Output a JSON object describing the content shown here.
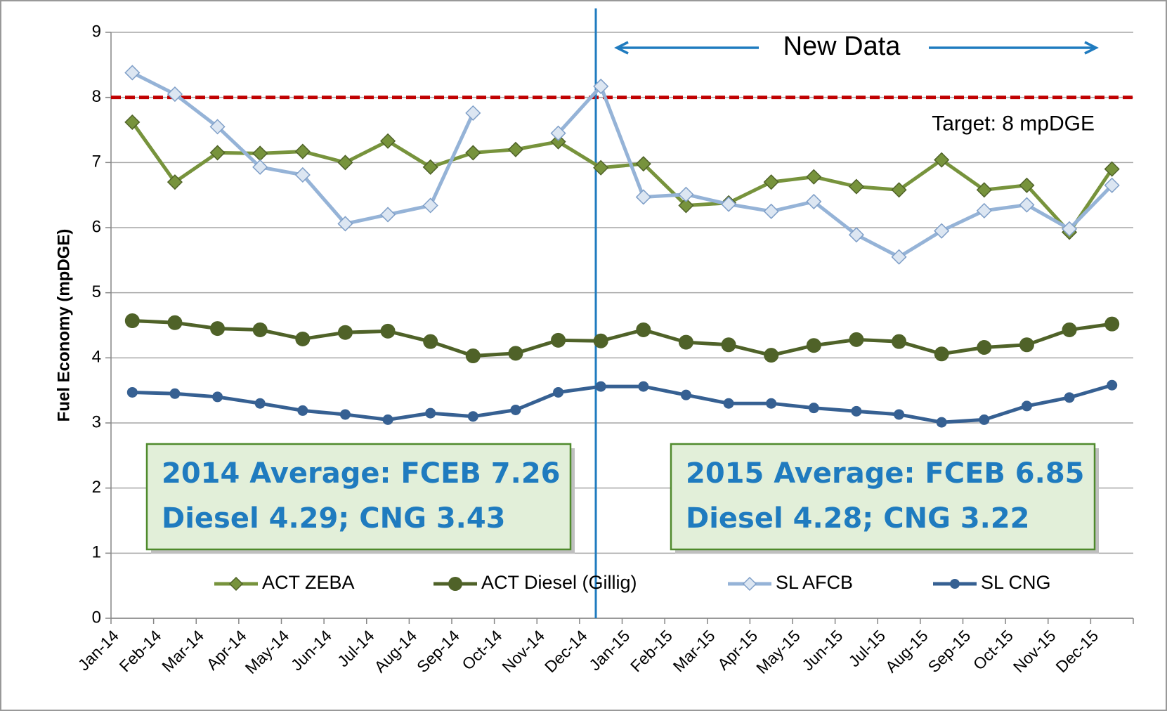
{
  "chart_data": {
    "type": "line",
    "y_label": "Fuel Economy (mpDGE)",
    "categories": [
      "Jan-14",
      "Feb-14",
      "Mar-14",
      "Apr-14",
      "May-14",
      "Jun-14",
      "Jul-14",
      "Aug-14",
      "Sep-14",
      "Oct-14",
      "Nov-14",
      "Dec-14",
      "Jan-15",
      "Feb-15",
      "Mar-15",
      "Apr-15",
      "May-15",
      "Jun-15",
      "Jul-15",
      "Aug-15",
      "Sep-15",
      "Oct-15",
      "Nov-15",
      "Dec-15"
    ],
    "series": [
      {
        "name": "ACT ZEBA",
        "color": "#77933c",
        "marker": "diamond",
        "values": [
          7.62,
          6.7,
          7.15,
          7.14,
          7.17,
          7.0,
          7.33,
          6.93,
          7.15,
          7.2,
          7.32,
          6.92,
          6.98,
          6.34,
          6.38,
          6.7,
          6.78,
          6.63,
          6.58,
          7.04,
          6.58,
          6.65,
          5.93,
          6.9
        ]
      },
      {
        "name": "ACT Diesel (Gillig)",
        "color": "#4f6228",
        "marker": "circle",
        "values": [
          4.57,
          4.54,
          4.45,
          4.43,
          4.29,
          4.39,
          4.41,
          4.25,
          4.03,
          4.07,
          4.27,
          4.26,
          4.43,
          4.24,
          4.2,
          4.04,
          4.19,
          4.28,
          4.25,
          4.06,
          4.16,
          4.2,
          4.43,
          4.52
        ]
      },
      {
        "name": "SL AFCB",
        "color": "#95b3d7",
        "marker": "diamond-open",
        "values": [
          8.38,
          8.05,
          7.55,
          6.93,
          6.81,
          6.06,
          6.2,
          6.34,
          7.76,
          null,
          7.45,
          8.17,
          6.47,
          6.51,
          6.36,
          6.25,
          6.4,
          5.89,
          5.55,
          5.95,
          6.26,
          6.35,
          5.98,
          6.65
        ]
      },
      {
        "name": "SL CNG",
        "color": "#366092",
        "marker": "small-circle",
        "values": [
          3.47,
          3.45,
          3.4,
          3.3,
          3.19,
          3.13,
          3.05,
          3.15,
          3.1,
          3.2,
          3.47,
          3.56,
          3.56,
          3.43,
          3.3,
          3.3,
          3.23,
          3.18,
          3.13,
          3.01,
          3.05,
          3.26,
          3.39,
          3.58
        ]
      }
    ],
    "target": {
      "value": 8,
      "label": "Target: 8 mpDGE",
      "color": "#c00000"
    },
    "new_data_label": "New Data",
    "annotations": [
      [
        "2014 Average: FCEB 7.26",
        "Diesel 4.29; CNG 3.43"
      ],
      [
        "2015 Average: FCEB 6.85",
        "Diesel 4.28; CNG 3.22"
      ]
    ],
    "ylim": [
      0,
      9
    ],
    "yticks": [
      0,
      1,
      2,
      3,
      4,
      5,
      6,
      7,
      8,
      9
    ],
    "grid": true
  }
}
